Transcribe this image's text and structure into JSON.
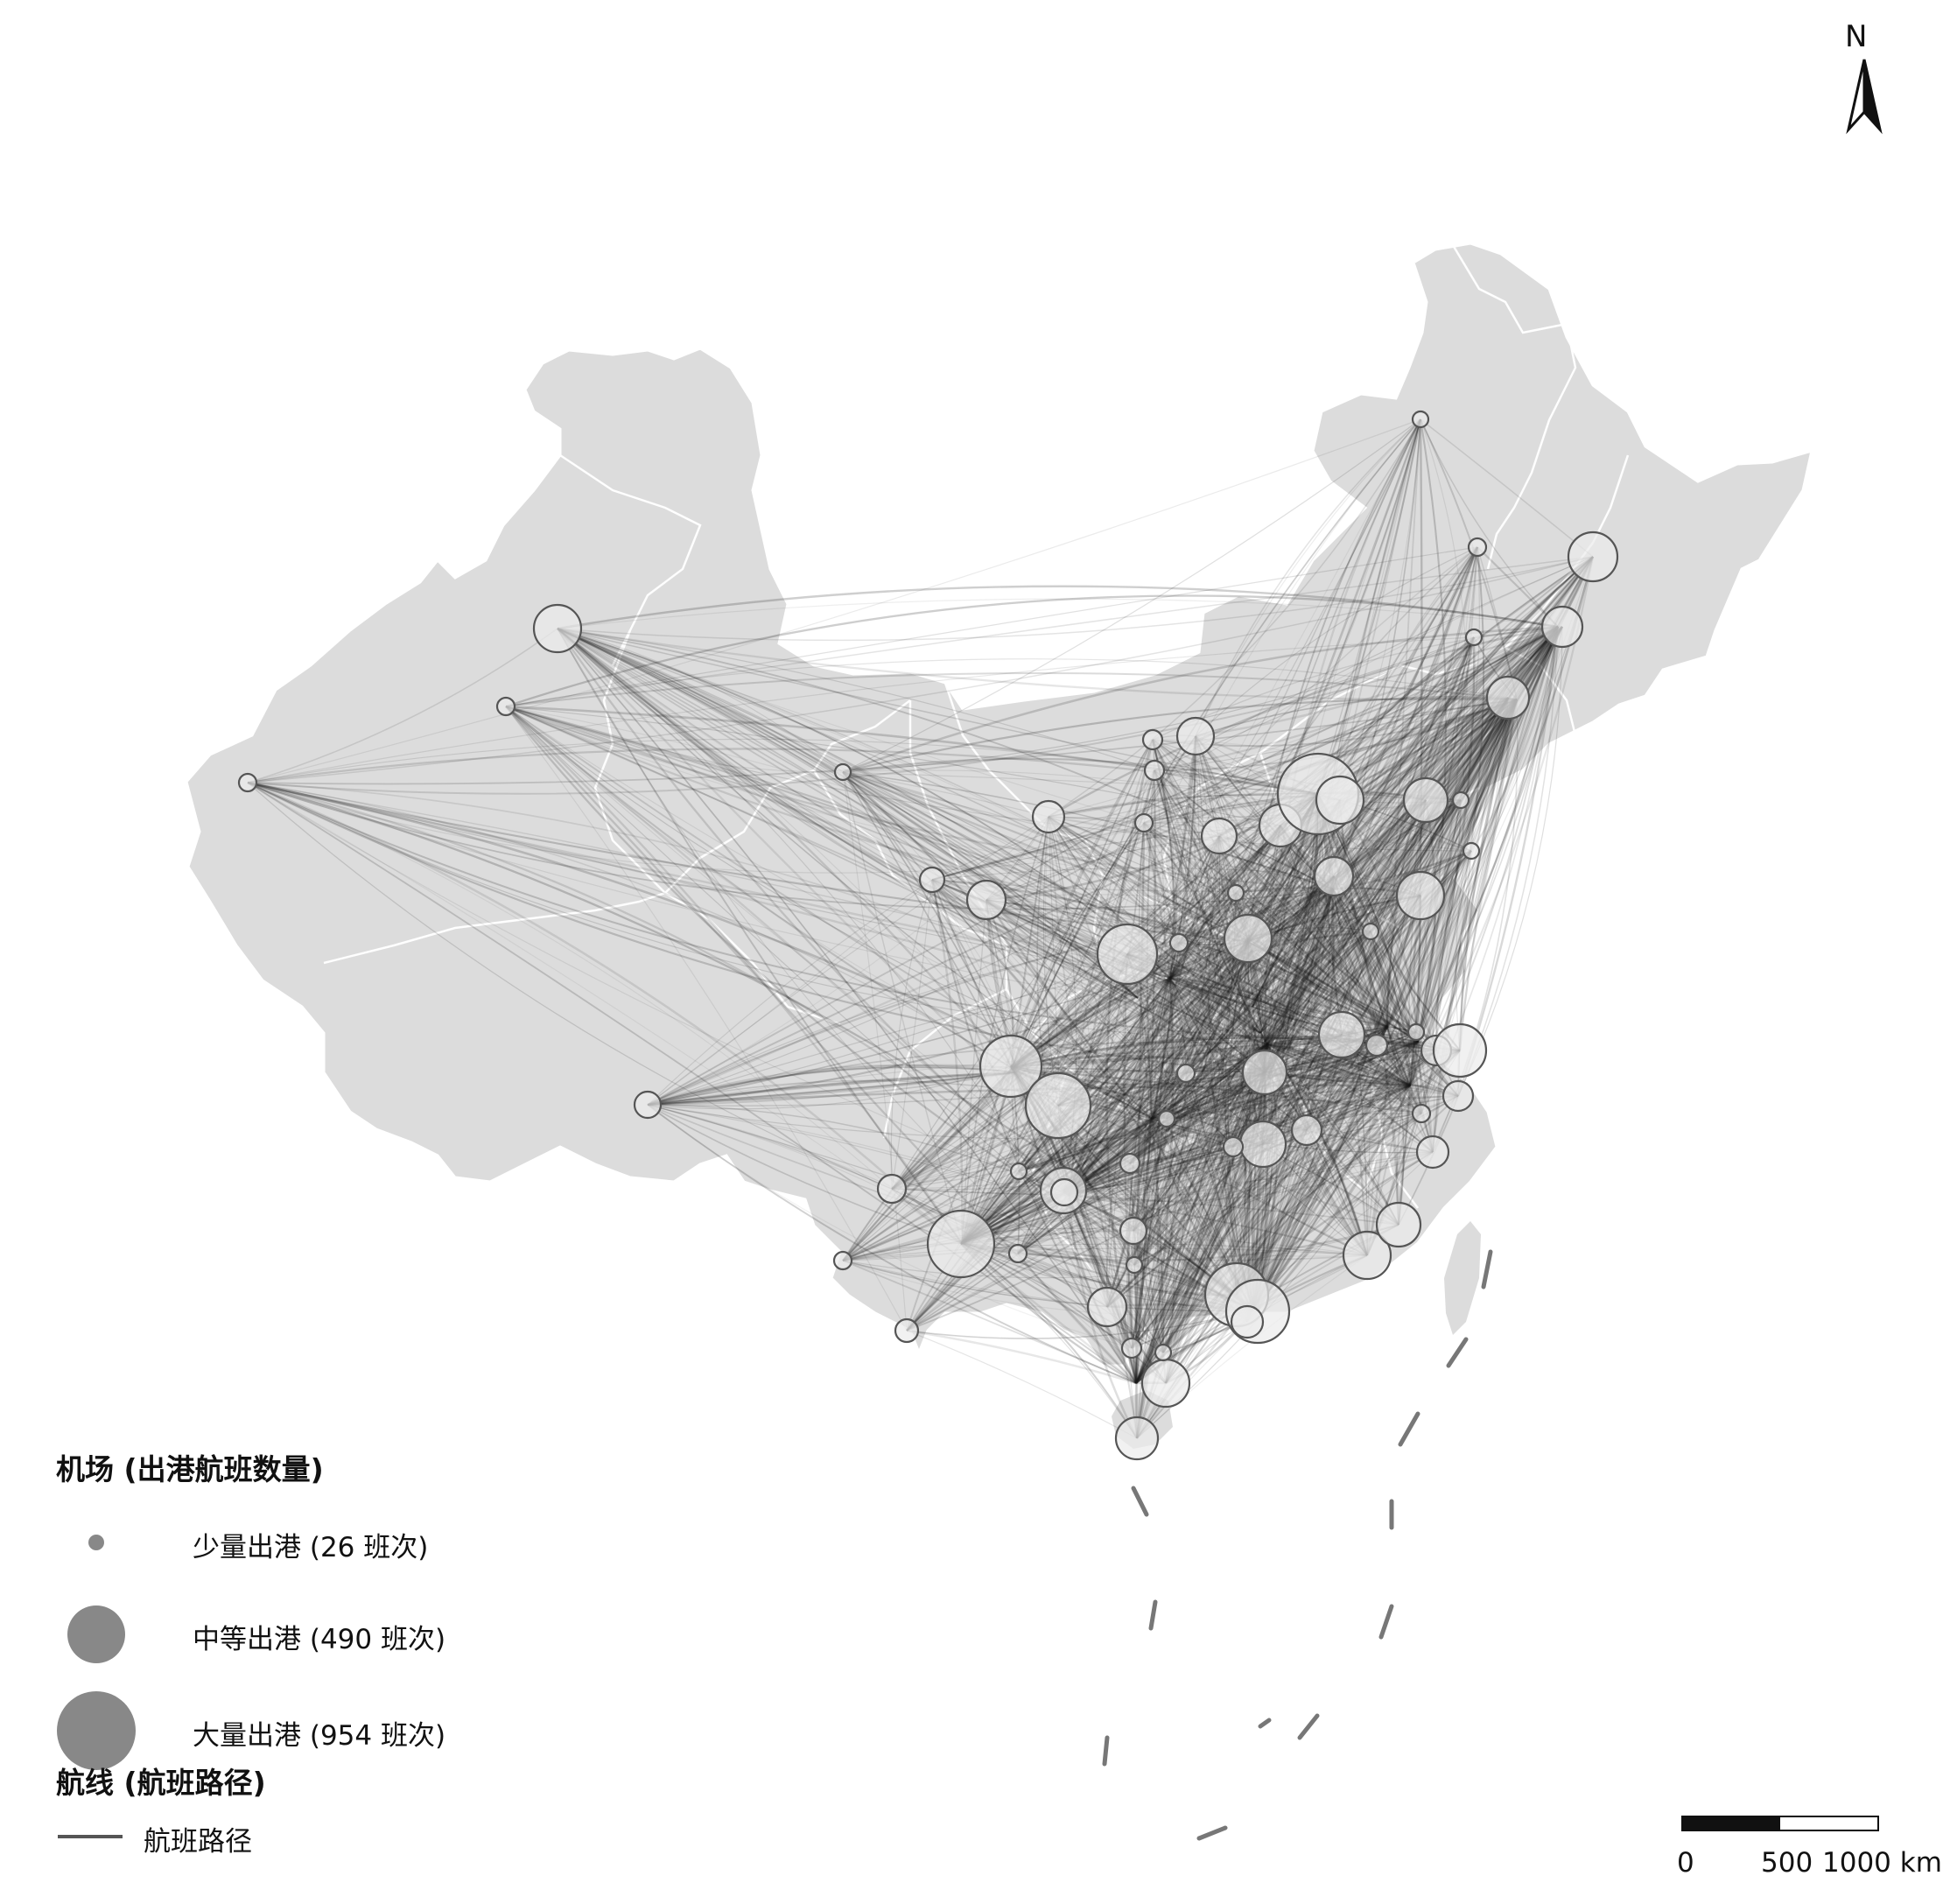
{
  "map": {
    "land_color": "#dcdcdc",
    "border_color": "#ffffff",
    "route_color": "#1e1e1e",
    "node_fill": "#ececec",
    "node_stroke": "#555555"
  },
  "north_arrow": {
    "label": "N",
    "icon": "north-arrow-icon"
  },
  "legend": {
    "airports_title": "机场 (出港航班数量)",
    "sizes": [
      {
        "label": "少量出港 (26 班次)",
        "value": 26
      },
      {
        "label": "中等出港 (490 班次)",
        "value": 490
      },
      {
        "label": "大量出港 (954 班次)",
        "value": 954
      }
    ],
    "routes_title": "航线 (航班路径)",
    "route_label": "航班路径",
    "symbol_color": "#888888"
  },
  "scale_bar": {
    "labels": [
      "0",
      "500",
      "1000 km"
    ]
  }
}
